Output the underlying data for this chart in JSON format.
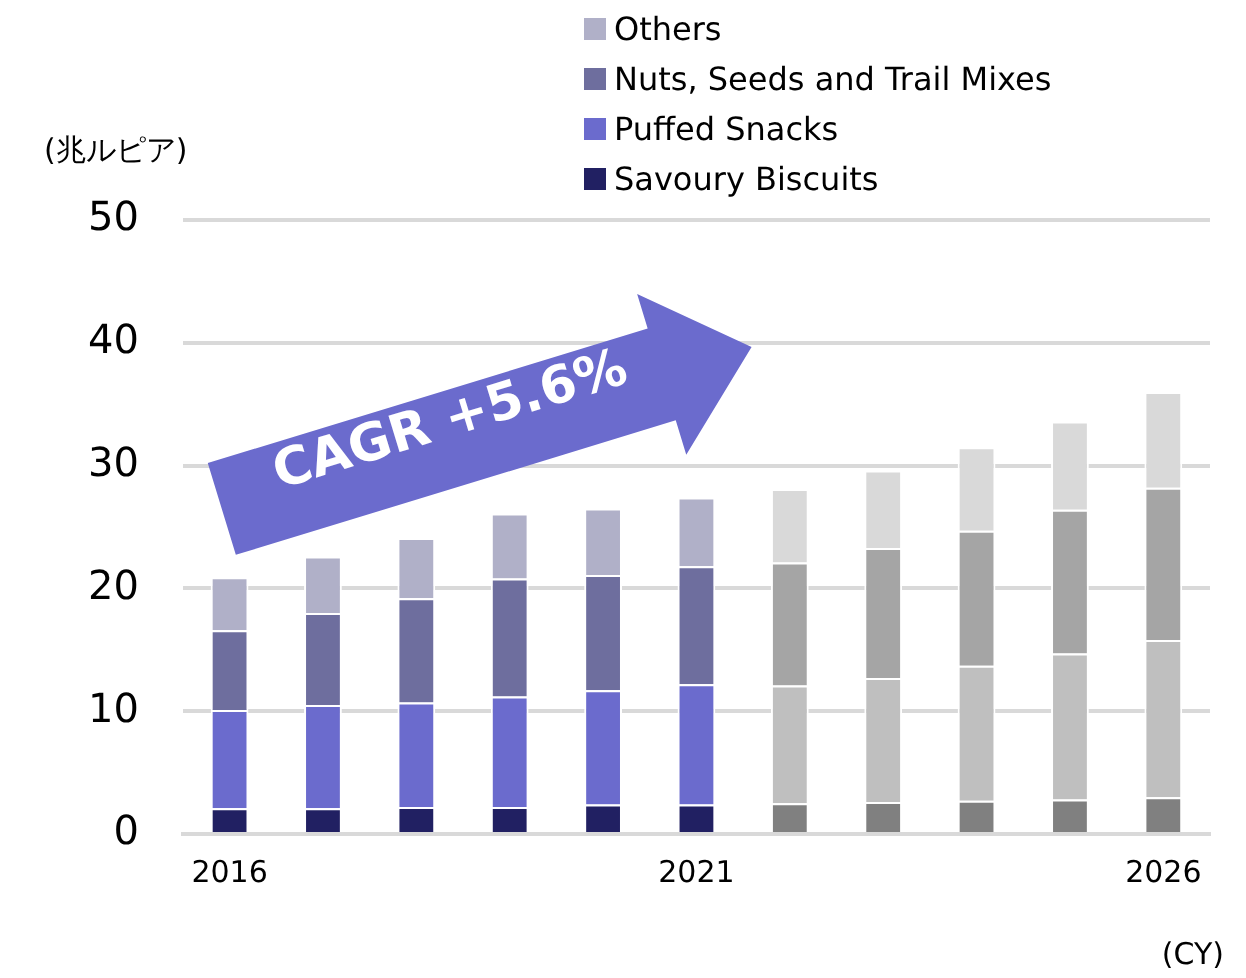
{
  "chart_data": {
    "type": "bar",
    "stacked": true,
    "categories": [
      "2016",
      null,
      null,
      null,
      null,
      "2021",
      null,
      null,
      null,
      null,
      "2026"
    ],
    "ylabel": "(兆ルピア)",
    "xlabel": "(CY)",
    "annotations": [
      "CAGR +5.6%"
    ],
    "ylim": [
      0,
      50
    ],
    "yticks": [
      0,
      10,
      20,
      30,
      40,
      50
    ],
    "grid": "y",
    "legend": "top right",
    "series": [
      {
        "name": "Savoury Biscuits",
        "color": "#212062",
        "colors": [
          "#212062",
          "#212062",
          "#212062",
          "#212062",
          "#212062",
          "#212062",
          "#808080",
          "#808080",
          "#808080",
          "#808080",
          "#808080"
        ],
        "values": [
          2.1,
          2.1,
          2.2,
          2.2,
          2.4,
          2.4,
          2.5,
          2.6,
          2.7,
          2.8,
          3.0
        ]
      },
      {
        "name": "Puffed Snacks",
        "color": "#6b6bcd",
        "colors": [
          "#6b6bcd",
          "#6b6bcd",
          "#6b6bcd",
          "#6b6bcd",
          "#6b6bcd",
          "#6b6bcd",
          "#bfbfbf",
          "#bfbfbf",
          "#bfbfbf",
          "#bfbfbf",
          "#bfbfbf"
        ],
        "values": [
          8.0,
          8.4,
          8.5,
          9.0,
          9.3,
          9.8,
          9.6,
          10.1,
          11.0,
          11.9,
          12.8
        ]
      },
      {
        "name": "Nuts, Seeds and Trail Mixes",
        "color": "#6e6e9e",
        "colors": [
          "#6e6e9e",
          "#6e6e9e",
          "#6e6e9e",
          "#6e6e9e",
          "#6e6e9e",
          "#6e6e9e",
          "#a5a5a5",
          "#a5a5a5",
          "#a5a5a5",
          "#a5a5a5",
          "#a5a5a5"
        ],
        "values": [
          6.5,
          7.5,
          8.5,
          9.6,
          9.4,
          9.6,
          10.0,
          10.6,
          11.0,
          11.7,
          12.4
        ]
      },
      {
        "name": "Others",
        "color": "#b0b0c8",
        "colors": [
          "#b0b0c8",
          "#b0b0c8",
          "#b0b0c8",
          "#b0b0c8",
          "#b0b0c8",
          "#b0b0c8",
          "#d9d9d9",
          "#d9d9d9",
          "#d9d9d9",
          "#d9d9d9",
          "#d9d9d9"
        ],
        "values": [
          4.3,
          4.6,
          4.9,
          5.3,
          5.4,
          5.6,
          6.0,
          6.3,
          6.8,
          7.2,
          7.8
        ]
      }
    ]
  }
}
